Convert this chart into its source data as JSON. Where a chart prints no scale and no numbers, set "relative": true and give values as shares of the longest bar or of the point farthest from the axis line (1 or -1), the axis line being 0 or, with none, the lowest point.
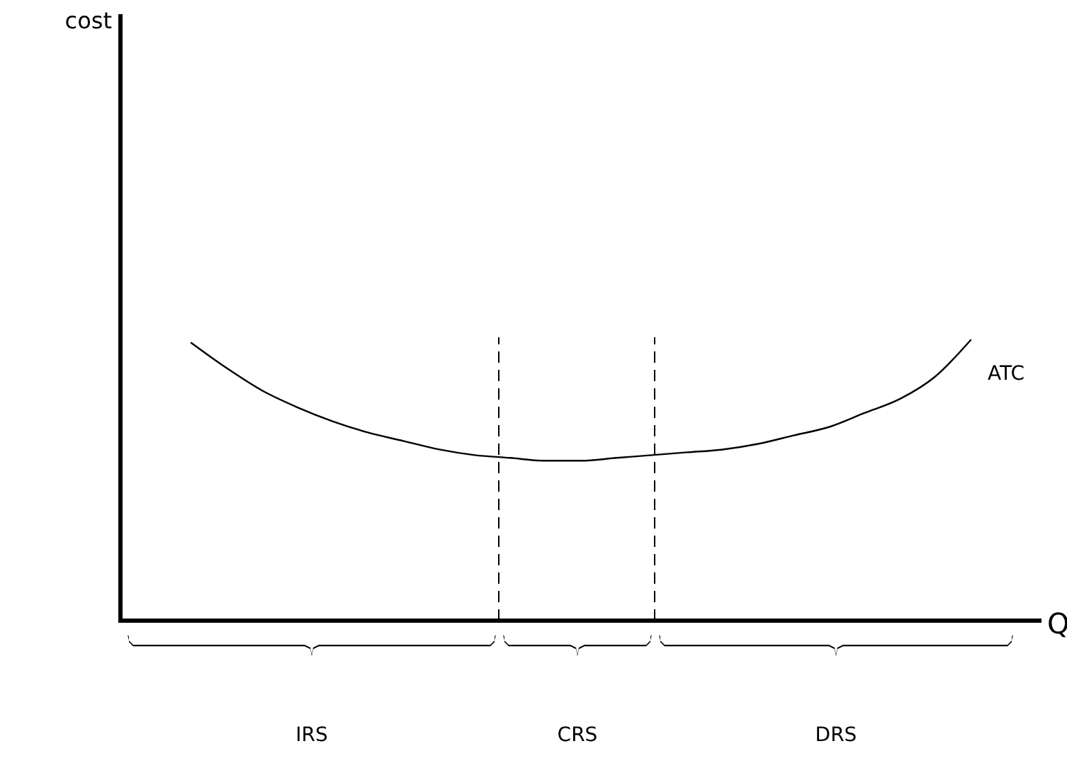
{
  "chart_data": {
    "type": "line",
    "relative": true,
    "xlabel": "Q",
    "categories": [
      null,
      null,
      null,
      null,
      null,
      null,
      null,
      null,
      null,
      null,
      null,
      null,
      null,
      null,
      null,
      null,
      null,
      null,
      null,
      null,
      null,
      null,
      null,
      null,
      null,
      null,
      null
    ],
    "series": [
      {
        "name": "ATC",
        "color": "#000000",
        "values": [
          null,
          null,
          0.99,
          0.9,
          0.82,
          0.76,
          0.71,
          0.67,
          0.64,
          0.61,
          0.59,
          0.58,
          0.57,
          0.57,
          0.58,
          0.59,
          0.6,
          0.61,
          0.63,
          0.66,
          0.69,
          0.74,
          0.79,
          0.87,
          1,
          null,
          null
        ]
      }
    ],
    "annotations": [
      "cost",
      "IRS",
      "CRS",
      "DRS"
    ]
  }
}
